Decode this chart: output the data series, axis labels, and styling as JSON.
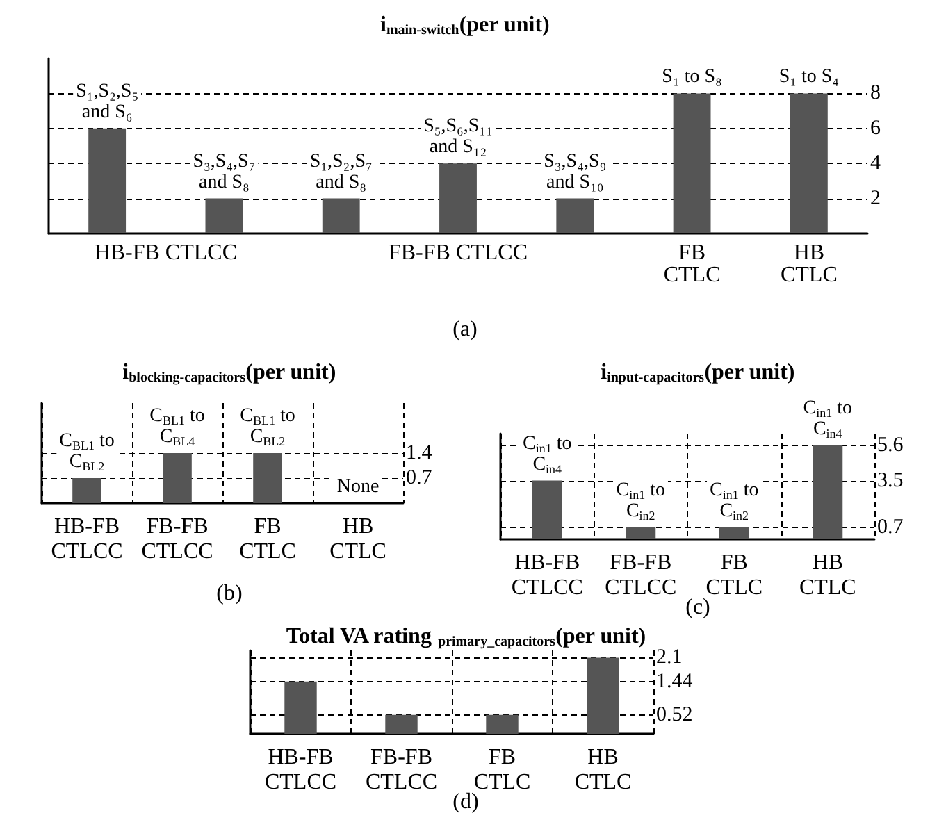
{
  "chart_data": [
    {
      "type": "bar",
      "title": "i$_{main-switch}$(per unit)",
      "subtitle": "(a)",
      "categories": [
        null,
        null,
        null,
        null,
        null,
        null,
        null
      ],
      "values": [
        6,
        2,
        2,
        4,
        2,
        8,
        8
      ],
      "color": "#555555",
      "value_labels": [
        "S₁,S₂,S₅\nand S₆",
        "S₃,S₄,S₇\nand S₈",
        "S₁,S₂,S₇\nand S₈",
        "S₅,S₆,S₁₁\nand S₁₂",
        "S₃,S₄,S₉\nand S₁₀",
        "S₁ to S₈",
        "S₁ to S₄"
      ],
      "annotations": [
        "HB-FB CTLCC",
        "FB-FB CTLCC",
        "FB\nCTLC",
        "HB\nCTLC"
      ],
      "ylim": [
        0,
        10
      ],
      "yticks": [
        2,
        4,
        6,
        8
      ],
      "grid": "y"
    },
    {
      "type": "bar",
      "title": "i$_{blocking-capacitors}$(per unit)",
      "subtitle": "(b)",
      "categories": [
        "HB-FB\nCTLCC",
        "FB-FB\nCTLCC",
        "FB\nCTLC",
        "HB\nCTLC"
      ],
      "values": [
        0.7,
        1.4,
        1.4,
        null
      ],
      "color": "#555555",
      "value_labels": [
        "C$_{BL1}$ to\nC$_{BL2}$",
        "C$_{BL1}$ to\nC$_{BL4}$",
        "C$_{BL1}$ to\nC$_{BL2}$",
        "None"
      ],
      "ylim": [
        0,
        2.8
      ],
      "yticks": [
        0.7,
        1.4
      ],
      "grid": true
    },
    {
      "type": "bar",
      "title": "i$_{input-capacitors}$(per unit)",
      "subtitle": "(c)",
      "categories": [
        "HB-FB\nCTLCC",
        "FB-FB\nCTLCC",
        "FB\nCTLC",
        "HB\nCTLC"
      ],
      "values": [
        3.5,
        0.7,
        0.7,
        5.6
      ],
      "color": "#555555",
      "value_labels": [
        "C$_{in1}$ to\nC$_{in4}$",
        "C$_{in1}$ to\nC$_{in2}$",
        "C$_{in1}$ to\nC$_{in2}$",
        "C$_{in1}$ to\nC$_{in4}$"
      ],
      "ylim": [
        0,
        6.3
      ],
      "yticks": [
        0.7,
        3.5,
        5.6
      ],
      "grid": true
    },
    {
      "type": "bar",
      "title": "Total VA rating $_{primary_capacitors}$(per unit)",
      "subtitle": "(d)",
      "categories": [
        "HB-FB\nCTLCC",
        "FB-FB\nCTLCC",
        "FB\nCTLC",
        "HB\nCTLC"
      ],
      "values": [
        1.44,
        0.52,
        0.52,
        2.1
      ],
      "color": "#555555",
      "ylim": [
        0,
        2.3
      ],
      "yticks": [
        0.52,
        1.44,
        2.1
      ],
      "grid": true
    }
  ]
}
